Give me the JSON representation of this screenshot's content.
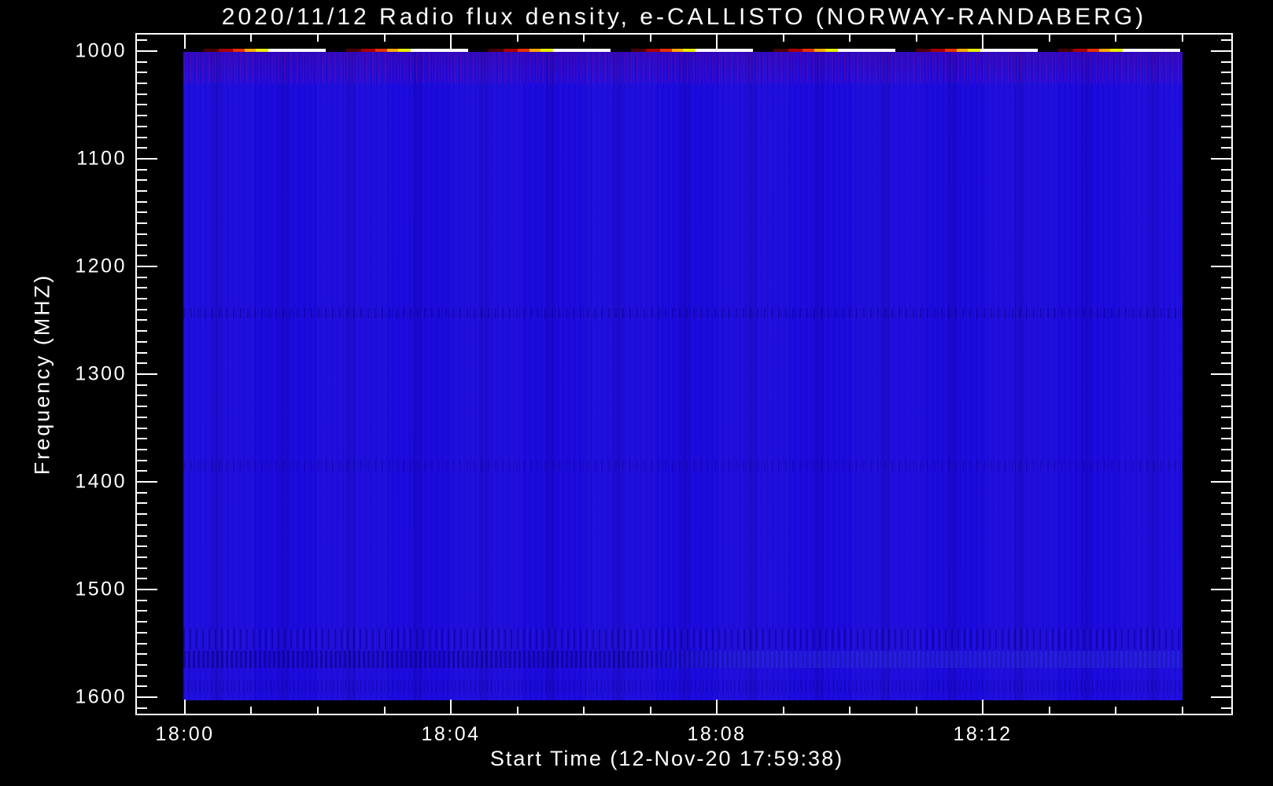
{
  "chart_data": {
    "type": "heatmap",
    "title": "2020/11/12  Radio flux density, e-CALLISTO (NORWAY-RANDABERG)",
    "xlabel": "Start Time (12-Nov-20 17:59:38)",
    "ylabel": "Frequency (MHZ)",
    "x_axis": {
      "major_ticks": [
        {
          "label": "18:00",
          "minute": 0
        },
        {
          "label": "18:04",
          "minute": 4
        },
        {
          "label": "18:08",
          "minute": 8
        },
        {
          "label": "18:12",
          "minute": 12
        }
      ],
      "minor_tick_minutes": [
        1,
        2,
        3,
        5,
        6,
        7,
        9,
        10,
        11,
        13,
        14,
        15
      ],
      "start_frac": 0.04385,
      "frac_per_minute": 0.06075
    },
    "y_axis": {
      "major_ticks": [
        {
          "label": "1000",
          "value": 1000
        },
        {
          "label": "1100",
          "value": 1100
        },
        {
          "label": "1200",
          "value": 1200
        },
        {
          "label": "1300",
          "value": 1300
        },
        {
          "label": "1400",
          "value": 1400
        },
        {
          "label": "1500",
          "value": 1500
        },
        {
          "label": "1600",
          "value": 1600
        }
      ],
      "minor_step": 10,
      "minor_first": 990,
      "minor_last": 1610,
      "value_min": 984.7,
      "value_max": 1615.3,
      "direction": "increasing-downward"
    },
    "colors": {
      "background": "#000000",
      "axis_and_text": "#ffffff",
      "quiet_flux_blue": "#1b0be0",
      "burst_gradient": [
        "#4a0000",
        "#a80000",
        "#e63200",
        "#ffaa00",
        "#e8ee00",
        "#ffffff"
      ]
    },
    "legend": "none",
    "grid": "off",
    "notes": "Quiet solar radio dynamic spectrum: uniform saturated blue body with faint vertical instrumental striping and weak horizontal interference bands (~1255 MHz, ~1385 MHz, 1540-1590 MHz); saturated red-to-white burst pixels appear only in a thin strip along the 1000 MHz top edge of the data, which spans roughly 18:00 to 18:15."
  }
}
